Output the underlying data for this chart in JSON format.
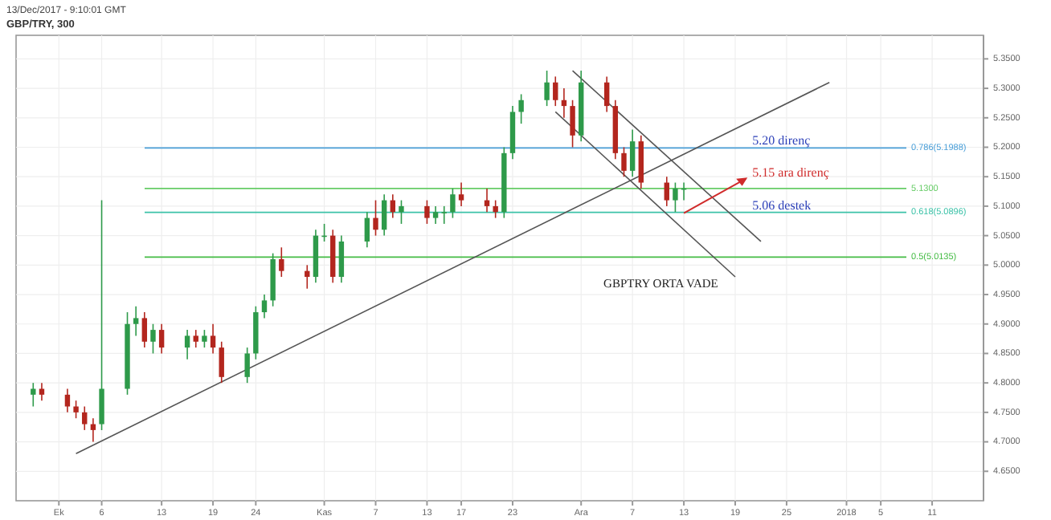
{
  "chart_data": {
    "type": "candlestick",
    "title": "GBP/TRY, 300",
    "subtitle": "13/Dec/2017 - 9:10:01 GMT",
    "x": [
      "2017-09-28",
      "2017-09-29",
      "2017-10-02",
      "2017-10-03",
      "2017-10-04",
      "2017-10-05",
      "2017-10-06",
      "2017-10-09",
      "2017-10-10",
      "2017-10-11",
      "2017-10-12",
      "2017-10-13",
      "2017-10-16",
      "2017-10-17",
      "2017-10-18",
      "2017-10-19",
      "2017-10-20",
      "2017-10-23",
      "2017-10-24",
      "2017-10-25",
      "2017-10-26",
      "2017-10-27",
      "2017-10-30",
      "2017-10-31",
      "2017-11-01",
      "2017-11-02",
      "2017-11-03",
      "2017-11-06",
      "2017-11-07",
      "2017-11-08",
      "2017-11-09",
      "2017-11-10",
      "2017-11-13",
      "2017-11-14",
      "2017-11-15",
      "2017-11-16",
      "2017-11-17",
      "2017-11-20",
      "2017-11-21",
      "2017-11-22",
      "2017-11-23",
      "2017-11-24",
      "2017-11-27",
      "2017-11-28",
      "2017-11-29",
      "2017-11-30",
      "2017-12-01",
      "2017-12-04",
      "2017-12-05",
      "2017-12-06",
      "2017-12-07",
      "2017-12-08",
      "2017-12-11",
      "2017-12-12",
      "2017-12-13"
    ],
    "ohlc": [
      [
        4.78,
        4.8,
        4.76,
        4.79
      ],
      [
        4.79,
        4.8,
        4.77,
        4.78
      ],
      [
        4.78,
        4.79,
        4.75,
        4.76
      ],
      [
        4.76,
        4.77,
        4.74,
        4.75
      ],
      [
        4.75,
        4.76,
        4.72,
        4.73
      ],
      [
        4.73,
        4.74,
        4.7,
        4.72
      ],
      [
        4.73,
        5.11,
        4.72,
        4.79
      ],
      [
        4.79,
        4.92,
        4.78,
        4.9
      ],
      [
        4.9,
        4.93,
        4.88,
        4.91
      ],
      [
        4.91,
        4.92,
        4.86,
        4.87
      ],
      [
        4.87,
        4.9,
        4.85,
        4.89
      ],
      [
        4.89,
        4.9,
        4.85,
        4.86
      ],
      [
        4.86,
        4.89,
        4.84,
        4.88
      ],
      [
        4.88,
        4.89,
        4.86,
        4.87
      ],
      [
        4.87,
        4.89,
        4.86,
        4.88
      ],
      [
        4.88,
        4.9,
        4.85,
        4.86
      ],
      [
        4.86,
        4.87,
        4.8,
        4.81
      ],
      [
        4.81,
        4.86,
        4.8,
        4.85
      ],
      [
        4.85,
        4.93,
        4.84,
        4.92
      ],
      [
        4.92,
        4.95,
        4.91,
        4.94
      ],
      [
        4.94,
        5.02,
        4.93,
        5.01
      ],
      [
        5.01,
        5.03,
        4.98,
        4.99
      ],
      [
        4.99,
        5.0,
        4.96,
        4.98
      ],
      [
        4.98,
        5.06,
        4.97,
        5.05
      ],
      [
        5.05,
        5.07,
        5.04,
        5.05
      ],
      [
        5.05,
        5.06,
        4.97,
        4.98
      ],
      [
        4.98,
        5.05,
        4.97,
        5.04
      ],
      [
        5.04,
        5.09,
        5.03,
        5.08
      ],
      [
        5.08,
        5.11,
        5.05,
        5.06
      ],
      [
        5.06,
        5.12,
        5.05,
        5.11
      ],
      [
        5.11,
        5.12,
        5.08,
        5.09
      ],
      [
        5.09,
        5.11,
        5.07,
        5.1
      ],
      [
        5.1,
        5.11,
        5.07,
        5.08
      ],
      [
        5.08,
        5.1,
        5.07,
        5.09
      ],
      [
        5.09,
        5.1,
        5.07,
        5.09
      ],
      [
        5.09,
        5.13,
        5.08,
        5.12
      ],
      [
        5.12,
        5.14,
        5.1,
        5.11
      ],
      [
        5.11,
        5.13,
        5.09,
        5.1
      ],
      [
        5.1,
        5.11,
        5.08,
        5.09
      ],
      [
        5.09,
        5.2,
        5.08,
        5.19
      ],
      [
        5.19,
        5.27,
        5.18,
        5.26
      ],
      [
        5.26,
        5.29,
        5.24,
        5.28
      ],
      [
        5.28,
        5.33,
        5.27,
        5.31
      ],
      [
        5.31,
        5.32,
        5.27,
        5.28
      ],
      [
        5.28,
        5.3,
        5.25,
        5.27
      ],
      [
        5.27,
        5.28,
        5.2,
        5.22
      ],
      [
        5.22,
        5.33,
        5.21,
        5.31
      ],
      [
        5.31,
        5.32,
        5.26,
        5.27
      ],
      [
        5.27,
        5.28,
        5.18,
        5.19
      ],
      [
        5.19,
        5.2,
        5.15,
        5.16
      ],
      [
        5.16,
        5.23,
        5.15,
        5.21
      ],
      [
        5.21,
        5.22,
        5.13,
        5.14
      ],
      [
        5.14,
        5.15,
        5.1,
        5.11
      ],
      [
        5.11,
        5.14,
        5.09,
        5.13
      ],
      [
        5.13,
        5.14,
        5.11,
        5.13
      ]
    ],
    "series": [
      {
        "type": "line",
        "color": "#555555",
        "x": [
          "2017-10-03",
          "2017-12-30"
        ],
        "values": [
          4.68,
          5.31
        ]
      },
      {
        "type": "line",
        "color": "#555555",
        "x": [
          "2017-11-30",
          "2017-12-22"
        ],
        "values": [
          5.33,
          5.04
        ]
      },
      {
        "type": "line",
        "color": "#555555",
        "x": [
          "2017-11-28",
          "2017-12-19"
        ],
        "values": [
          5.26,
          4.98
        ]
      }
    ],
    "ref_lines": [
      {
        "axis": "y",
        "value": 5.1988,
        "label": "0.786(5.1988)",
        "color": "#4a9fd8"
      },
      {
        "axis": "y",
        "value": 5.0896,
        "label": "0.618(5.0896)",
        "color": "#3cc2a8"
      },
      {
        "axis": "y",
        "value": 5.0135,
        "label": "0.5(5.0135)",
        "color": "#44bb44"
      },
      {
        "axis": "y",
        "value": 5.13,
        "label": "5.1300",
        "color": "#66cc66"
      }
    ],
    "annotations": [
      {
        "text": "5.20 direnç",
        "x": "2017-12-21",
        "y": 5.21
      },
      "5.15 ara direnç",
      {
        "text": "5.06 destek",
        "x": "2017-12-21",
        "y": 5.1
      },
      "GBPTRY ORTA VADE"
    ],
    "xlim": [
      "2017-09-26",
      "2018-01-17"
    ],
    "xticks": [
      {
        "value": "2017-10-01",
        "label": "Ek"
      },
      {
        "value": "2017-10-06",
        "label": "6"
      },
      {
        "value": "2017-10-13",
        "label": "13"
      },
      {
        "value": "2017-10-19",
        "label": "19"
      },
      {
        "value": "2017-10-24",
        "label": "24"
      },
      {
        "value": "2017-11-01",
        "label": "Kas"
      },
      {
        "value": "2017-11-07",
        "label": "7"
      },
      {
        "value": "2017-11-13",
        "label": "13"
      },
      {
        "value": "2017-11-17",
        "label": "17"
      },
      {
        "value": "2017-11-23",
        "label": "23"
      },
      {
        "value": "2017-12-01",
        "label": "Ara"
      },
      {
        "value": "2017-12-07",
        "label": "7"
      },
      {
        "value": "2017-12-13",
        "label": "13"
      },
      {
        "value": "2017-12-19",
        "label": "19"
      },
      {
        "value": "2017-12-25",
        "label": "25"
      },
      {
        "value": "2018-01-01",
        "label": "2018"
      },
      {
        "value": "2018-01-05",
        "label": "5"
      },
      {
        "value": "2018-01-11",
        "label": "11"
      }
    ],
    "ylim": [
      4.6,
      5.39
    ],
    "yticks": [
      {
        "value": 4.65,
        "label": "4.6500"
      },
      {
        "value": 4.7,
        "label": "4.7000"
      },
      {
        "value": 4.75,
        "label": "4.7500"
      },
      {
        "value": 4.8,
        "label": "4.8000"
      },
      {
        "value": 4.85,
        "label": "4.8500"
      },
      {
        "value": 4.9,
        "label": "4.9000"
      },
      {
        "value": 4.95,
        "label": "4.9500"
      },
      {
        "value": 5.0,
        "label": "5.0000"
      },
      {
        "value": 5.05,
        "label": "5.0500"
      },
      {
        "value": 5.1,
        "label": "5.1000"
      },
      {
        "value": 5.15,
        "label": "5.1500"
      },
      {
        "value": 5.2,
        "label": "5.2000"
      },
      {
        "value": 5.25,
        "label": "5.2500"
      },
      {
        "value": 5.3,
        "label": "5.3000"
      },
      {
        "value": 5.35,
        "label": "5.3500"
      }
    ],
    "grid": true
  }
}
